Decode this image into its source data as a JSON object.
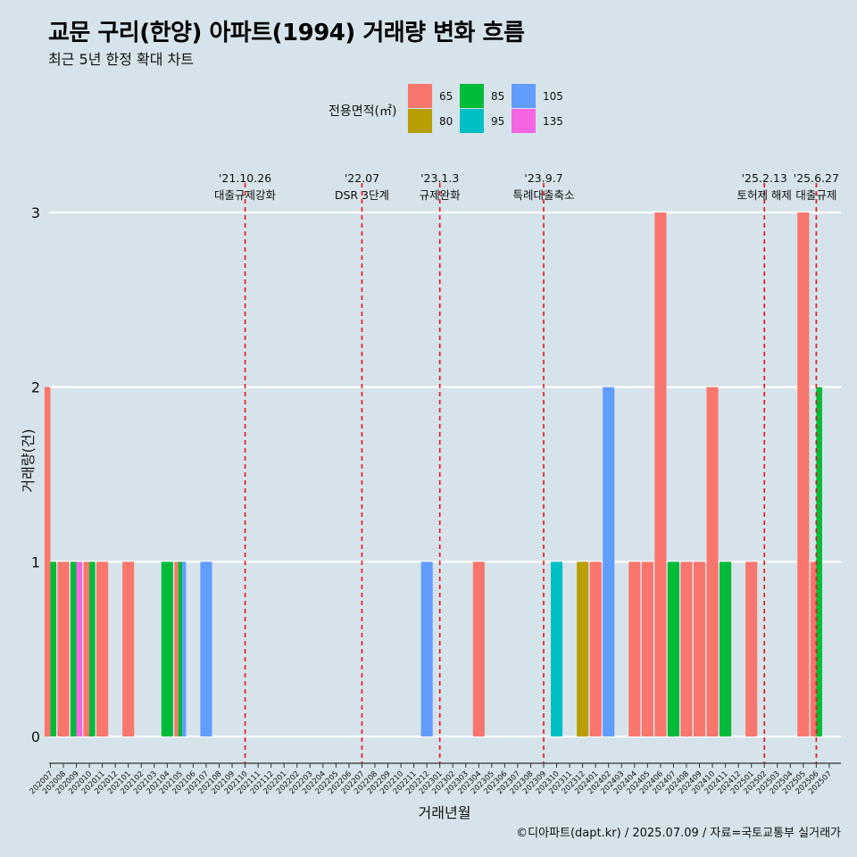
{
  "title": "교문 구리(한양) 아파트(1994) 거래량 변화 흐름",
  "subtitle": "최근 5년 한정 확대 차트",
  "caption": "©디아파트(dapt.kr) / 2025.07.09 / 자료=국토교통부 실거래가",
  "colors": {
    "background": "#d6e3ea",
    "grid": "#ffffff",
    "event_line": "#e8141a",
    "65": "#f8766d",
    "80": "#b79f00",
    "85": "#00ba38",
    "95": "#00bfc4",
    "105": "#619cff",
    "135": "#f564e3"
  },
  "legend": {
    "title": "전용면적(㎡)",
    "items": [
      {
        "label": "65",
        "color": "#f8766d"
      },
      {
        "label": "85",
        "color": "#00ba38"
      },
      {
        "label": "105",
        "color": "#619cff"
      },
      {
        "label": "80",
        "color": "#b79f00"
      },
      {
        "label": "95",
        "color": "#00bfc4"
      },
      {
        "label": "135",
        "color": "#f564e3"
      }
    ]
  },
  "chart_data": {
    "type": "bar",
    "xlabel": "거래년월",
    "ylabel": "거래량(건)",
    "ylim": [
      0,
      3
    ],
    "yticks": [
      0,
      1,
      2,
      3
    ],
    "grid": true,
    "legend_position": "top",
    "categories": [
      "202007",
      "202008",
      "202009",
      "202010",
      "202011",
      "202012",
      "202101",
      "202102",
      "202103",
      "202104",
      "202105",
      "202106",
      "202107",
      "202108",
      "202109",
      "202110",
      "202111",
      "202112",
      "202201",
      "202202",
      "202203",
      "202204",
      "202205",
      "202206",
      "202207",
      "202208",
      "202209",
      "202210",
      "202211",
      "202212",
      "202301",
      "202302",
      "202303",
      "202304",
      "202305",
      "202306",
      "202307",
      "202308",
      "202309",
      "202310",
      "202311",
      "202312",
      "202401",
      "202402",
      "202403",
      "202404",
      "202405",
      "202406",
      "202407",
      "202408",
      "202409",
      "202410",
      "202411",
      "202412",
      "202501",
      "202502",
      "202503",
      "202504",
      "202505",
      "202506",
      "202507"
    ],
    "series": [
      {
        "name": "65",
        "color": "#f8766d",
        "values": [
          2,
          1,
          0,
          1,
          1,
          0,
          1,
          0,
          0,
          0,
          1,
          0,
          0,
          0,
          0,
          0,
          0,
          0,
          0,
          0,
          0,
          0,
          0,
          0,
          0,
          0,
          0,
          0,
          0,
          0,
          0,
          0,
          0,
          1,
          0,
          0,
          0,
          0,
          0,
          0,
          0,
          0,
          1,
          0,
          0,
          1,
          1,
          3,
          0,
          1,
          1,
          2,
          0,
          0,
          1,
          0,
          0,
          0,
          3,
          1,
          0
        ]
      },
      {
        "name": "80",
        "color": "#b79f00",
        "values": [
          0,
          0,
          0,
          0,
          0,
          0,
          0,
          0,
          0,
          0,
          0,
          0,
          0,
          0,
          0,
          0,
          0,
          0,
          0,
          0,
          0,
          0,
          0,
          0,
          0,
          0,
          0,
          0,
          0,
          0,
          0,
          0,
          0,
          0,
          0,
          0,
          0,
          0,
          0,
          0,
          0,
          1,
          0,
          0,
          0,
          0,
          0,
          0,
          0,
          0,
          0,
          0,
          0,
          0,
          0,
          0,
          0,
          0,
          0,
          0,
          0
        ]
      },
      {
        "name": "85",
        "color": "#00ba38",
        "values": [
          1,
          0,
          1,
          1,
          0,
          0,
          0,
          0,
          0,
          1,
          1,
          0,
          0,
          0,
          0,
          0,
          0,
          0,
          0,
          0,
          0,
          0,
          0,
          0,
          0,
          0,
          0,
          0,
          0,
          0,
          0,
          0,
          0,
          0,
          0,
          0,
          0,
          0,
          0,
          0,
          0,
          0,
          0,
          0,
          0,
          0,
          0,
          0,
          1,
          0,
          0,
          0,
          1,
          0,
          0,
          0,
          0,
          0,
          0,
          2,
          0
        ]
      },
      {
        "name": "95",
        "color": "#00bfc4",
        "values": [
          0,
          0,
          0,
          0,
          0,
          0,
          0,
          0,
          0,
          0,
          0,
          0,
          0,
          0,
          0,
          0,
          0,
          0,
          0,
          0,
          0,
          0,
          0,
          0,
          0,
          0,
          0,
          0,
          0,
          0,
          0,
          0,
          0,
          0,
          0,
          0,
          0,
          0,
          0,
          1,
          0,
          0,
          0,
          0,
          0,
          0,
          0,
          0,
          0,
          0,
          0,
          0,
          0,
          0,
          0,
          0,
          0,
          0,
          0,
          0,
          0
        ]
      },
      {
        "name": "105",
        "color": "#619cff",
        "values": [
          0,
          0,
          0,
          0,
          0,
          0,
          0,
          0,
          0,
          0,
          1,
          0,
          1,
          0,
          0,
          0,
          0,
          0,
          0,
          0,
          0,
          0,
          0,
          0,
          0,
          0,
          0,
          0,
          0,
          1,
          0,
          0,
          0,
          0,
          0,
          0,
          0,
          0,
          0,
          0,
          0,
          0,
          0,
          2,
          0,
          0,
          0,
          0,
          0,
          0,
          0,
          0,
          0,
          0,
          0,
          0,
          0,
          0,
          0,
          0,
          0
        ]
      },
      {
        "name": "135",
        "color": "#f564e3",
        "values": [
          0,
          0,
          1,
          0,
          0,
          0,
          0,
          0,
          0,
          0,
          0,
          0,
          0,
          0,
          0,
          0,
          0,
          0,
          0,
          0,
          0,
          0,
          0,
          0,
          0,
          0,
          0,
          0,
          0,
          0,
          0,
          0,
          0,
          0,
          0,
          0,
          0,
          0,
          0,
          0,
          0,
          0,
          0,
          0,
          0,
          0,
          0,
          0,
          0,
          0,
          0,
          0,
          0,
          0,
          0,
          0,
          0,
          0,
          0,
          0,
          0
        ]
      }
    ],
    "events": [
      {
        "x": "202110",
        "date": "'21.10.26",
        "label": "대출규제강화"
      },
      {
        "x": "202207",
        "date": "'22.07",
        "label": "DSR 3단계"
      },
      {
        "x": "202301",
        "date": "'23.1.3",
        "label": "규제완화"
      },
      {
        "x": "202309",
        "date": "'23.9.7",
        "label": "특례대출축소"
      },
      {
        "x": "202502",
        "date": "'25.2.13",
        "label": "토허제 해제"
      },
      {
        "x": "202506",
        "date": "'25.6.27",
        "label": "대출규제"
      }
    ]
  }
}
